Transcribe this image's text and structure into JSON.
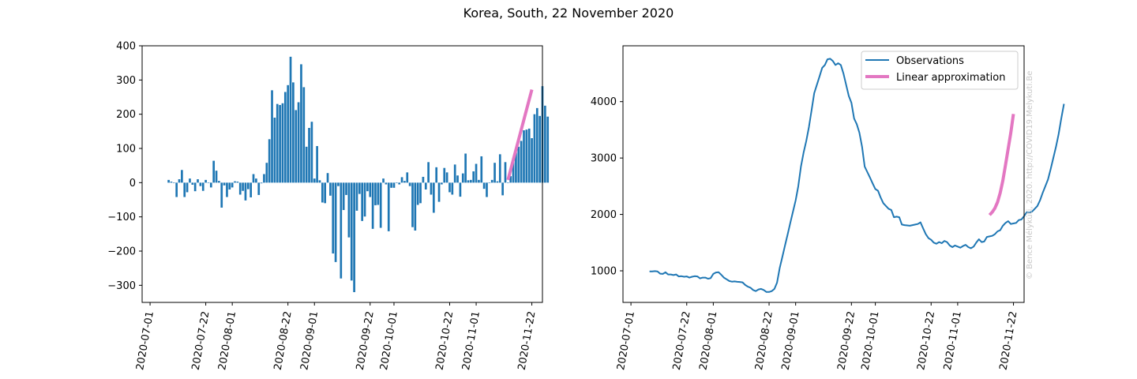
{
  "title": "Korea, South, 22 November 2020",
  "watermark": "© Bence Mélykúti, 2020. http://COVID19.Melykuti.Be",
  "colors": {
    "observations": "#1f77b4",
    "approximation": "#e377c2"
  },
  "chart_data": [
    {
      "type": "bar",
      "start_date": "2020-07-08",
      "ylim": [
        -350,
        400
      ],
      "yticks": [
        -300,
        -200,
        -100,
        0,
        100,
        200,
        300,
        400
      ],
      "xticks": [
        "2020-07-01",
        "2020-07-22",
        "2020-08-01",
        "2020-08-22",
        "2020-09-01",
        "2020-09-22",
        "2020-10-01",
        "2020-10-22",
        "2020-11-01",
        "2020-11-22"
      ],
      "values": [
        8,
        3,
        0,
        -42,
        10,
        37,
        -42,
        -28,
        12,
        -6,
        -25,
        10,
        -10,
        -24,
        8,
        0,
        -14,
        64,
        35,
        5,
        -73,
        -8,
        -42,
        -20,
        -14,
        4,
        3,
        -35,
        -24,
        -52,
        -19,
        -43,
        25,
        12,
        -36,
        -2,
        25,
        58,
        127,
        270,
        190,
        230,
        227,
        232,
        265,
        285,
        368,
        293,
        212,
        235,
        346,
        279,
        105,
        160,
        178,
        12,
        107,
        7,
        -58,
        -60,
        28,
        -38,
        -207,
        -232,
        -10,
        -280,
        -80,
        -36,
        -160,
        -286,
        -320,
        -82,
        -33,
        -112,
        -99,
        -25,
        -42,
        -135,
        -66,
        -65,
        -132,
        12,
        -5,
        -142,
        -15,
        -15,
        0,
        -5,
        16,
        5,
        30,
        -10,
        -130,
        -140,
        -65,
        -60,
        17,
        -20,
        60,
        -35,
        -88,
        45,
        -56,
        -5,
        43,
        30,
        -28,
        -35,
        53,
        21,
        -41,
        27,
        85,
        7,
        8,
        33,
        55,
        8,
        77,
        -18,
        -42,
        0,
        8,
        58,
        4,
        83,
        -37,
        60,
        0,
        19,
        72,
        88,
        105,
        122,
        153,
        155,
        158,
        130,
        200,
        218,
        195,
        282,
        225,
        193
      ],
      "linear_approximation": {
        "x_start": "2020-11-13",
        "x_end": "2020-11-22",
        "y_start": 8,
        "y_end": 272
      }
    },
    {
      "type": "line",
      "start_date": "2020-07-08",
      "ylim": [
        440,
        4990
      ],
      "yticks": [
        1000,
        2000,
        3000,
        4000
      ],
      "xticks": [
        "2020-07-01",
        "2020-07-22",
        "2020-08-01",
        "2020-08-22",
        "2020-09-01",
        "2020-09-22",
        "2020-10-01",
        "2020-10-22",
        "2020-11-01",
        "2020-11-22"
      ],
      "legend": {
        "position": "top-right",
        "entries": [
          "Observations",
          "Linear approximation"
        ]
      },
      "series": [
        {
          "name": "Observations",
          "values": [
            990,
            990,
            995,
            990,
            950,
            945,
            975,
            935,
            935,
            925,
            935,
            900,
            905,
            895,
            900,
            880,
            895,
            905,
            900,
            865,
            880,
            880,
            860,
            870,
            945,
            970,
            975,
            930,
            880,
            850,
            820,
            808,
            812,
            805,
            802,
            795,
            750,
            720,
            700,
            660,
            640,
            670,
            680,
            660,
            625,
            625,
            640,
            680,
            790,
            1050,
            1250,
            1450,
            1650,
            1850,
            2050,
            2250,
            2500,
            2850,
            3100,
            3300,
            3550,
            3850,
            4150,
            4300,
            4450,
            4600,
            4650,
            4750,
            4760,
            4720,
            4650,
            4680,
            4650,
            4500,
            4300,
            4100,
            3980,
            3700,
            3600,
            3450,
            3200,
            2850,
            2750,
            2650,
            2550,
            2450,
            2420,
            2300,
            2200,
            2150,
            2100,
            2080,
            1950,
            1960,
            1950,
            1820,
            1810,
            1805,
            1800,
            1810,
            1820,
            1830,
            1860,
            1750,
            1650,
            1580,
            1550,
            1500,
            1480,
            1510,
            1490,
            1530,
            1510,
            1450,
            1420,
            1450,
            1430,
            1410,
            1440,
            1460,
            1420,
            1400,
            1430,
            1500,
            1560,
            1510,
            1520,
            1600,
            1610,
            1620,
            1650,
            1700,
            1720,
            1800,
            1850,
            1880,
            1830,
            1840,
            1850,
            1900,
            1910,
            1970,
            2040,
            2030,
            2050,
            2100,
            2150,
            2250,
            2380,
            2500,
            2620,
            2800,
            3000,
            3200,
            3420,
            3700,
            3960
          ]
        },
        {
          "name": "Linear approximation",
          "x_start": "2020-11-13",
          "values": [
            1990,
            2040,
            2110,
            2220,
            2380,
            2600,
            2880,
            3160,
            3450,
            3780
          ]
        }
      ]
    }
  ]
}
